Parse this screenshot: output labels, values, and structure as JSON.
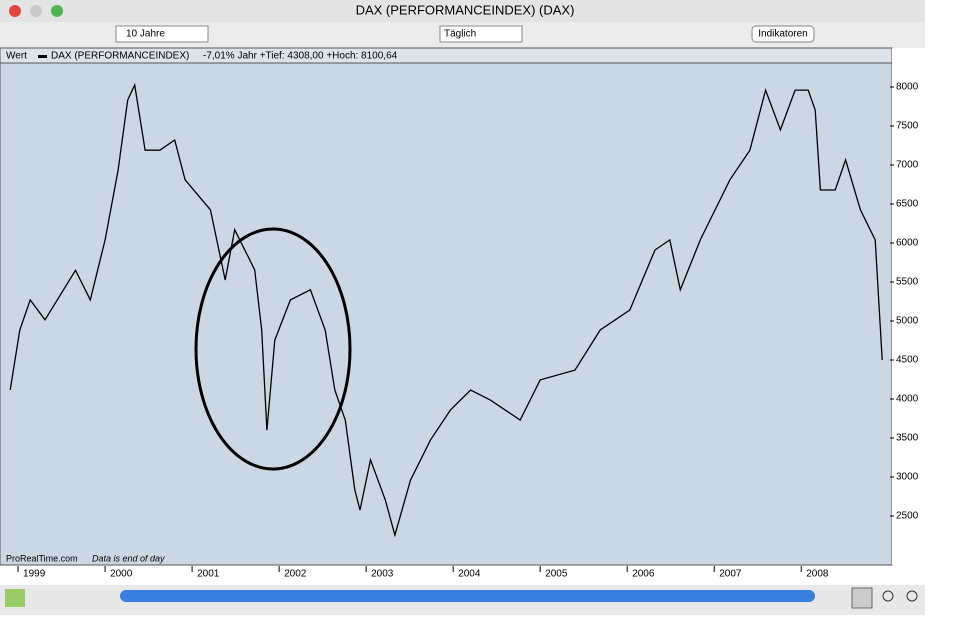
{
  "window": {
    "title": "DAX (PERFORMANCEINDEX) (DAX)"
  },
  "toolbar": {
    "period": "10 Jahre",
    "interval": "Täglich",
    "indicators": "Indikatoren"
  },
  "legend": {
    "label": "Wert",
    "series": "DAX (PERFORMANCEINDEX)",
    "stats": "-7,01% Jahr +Tief: 4308,00 +Hoch: 8100,64"
  },
  "footer": {
    "source": "ProRealTime.com",
    "note": "Data is end of day"
  },
  "chart_data": {
    "type": "line",
    "series": [
      {
        "name": "DAX (PERFORMANCEINDEX)",
        "color": "#000000",
        "x": [
          1998.91,
          1999.02,
          1999.14,
          1999.31,
          1999.66,
          1999.83,
          2000.0,
          2000.15,
          2000.26,
          2000.34,
          2000.46,
          2000.63,
          2000.8,
          2000.92,
          2001.21,
          2001.38,
          2001.49,
          2001.72,
          2001.8,
          2001.86,
          2001.95,
          2002.13,
          2002.36,
          2002.53,
          2002.64,
          2002.76,
          2002.87,
          2002.93,
          2003.05,
          2003.22,
          2003.33,
          2003.51,
          2003.74,
          2003.97,
          2004.2,
          2004.43,
          2004.77,
          2005.0,
          2005.4,
          2005.69,
          2006.03,
          2006.32,
          2006.49,
          2006.61,
          2006.84,
          2007.18,
          2007.41,
          2007.59,
          2007.76,
          2007.93,
          2008.08,
          2008.16,
          2008.22,
          2008.39,
          2008.51,
          2008.68,
          2008.85,
          2008.93
        ],
        "values": [
          4115,
          4885,
          5270,
          5015,
          5650,
          5270,
          6040,
          6935,
          7833,
          8025,
          7190,
          7190,
          7320,
          6810,
          6425,
          5525,
          6170,
          5655,
          4885,
          3600,
          4755,
          5270,
          5400,
          4885,
          4115,
          3730,
          2835,
          2575,
          3220,
          2705,
          2255,
          2960,
          3475,
          3860,
          4115,
          3985,
          3730,
          4245,
          4370,
          4885,
          5140,
          5910,
          6040,
          5400,
          6040,
          6810,
          7190,
          7960,
          7450,
          7960,
          7960,
          7705,
          6680,
          6680,
          7065,
          6425,
          6040,
          4500
        ]
      }
    ],
    "xlim": [
      1998.85,
      2009.02
    ],
    "xticks": [
      1999,
      2000,
      2001,
      2002,
      2003,
      2004,
      2005,
      2006,
      2007,
      2008
    ],
    "ylim": [
      2064,
      8282
    ],
    "yticks": [
      2500,
      3000,
      3500,
      4000,
      4500,
      5000,
      5500,
      6000,
      6500,
      7000,
      7500,
      8000
    ]
  }
}
